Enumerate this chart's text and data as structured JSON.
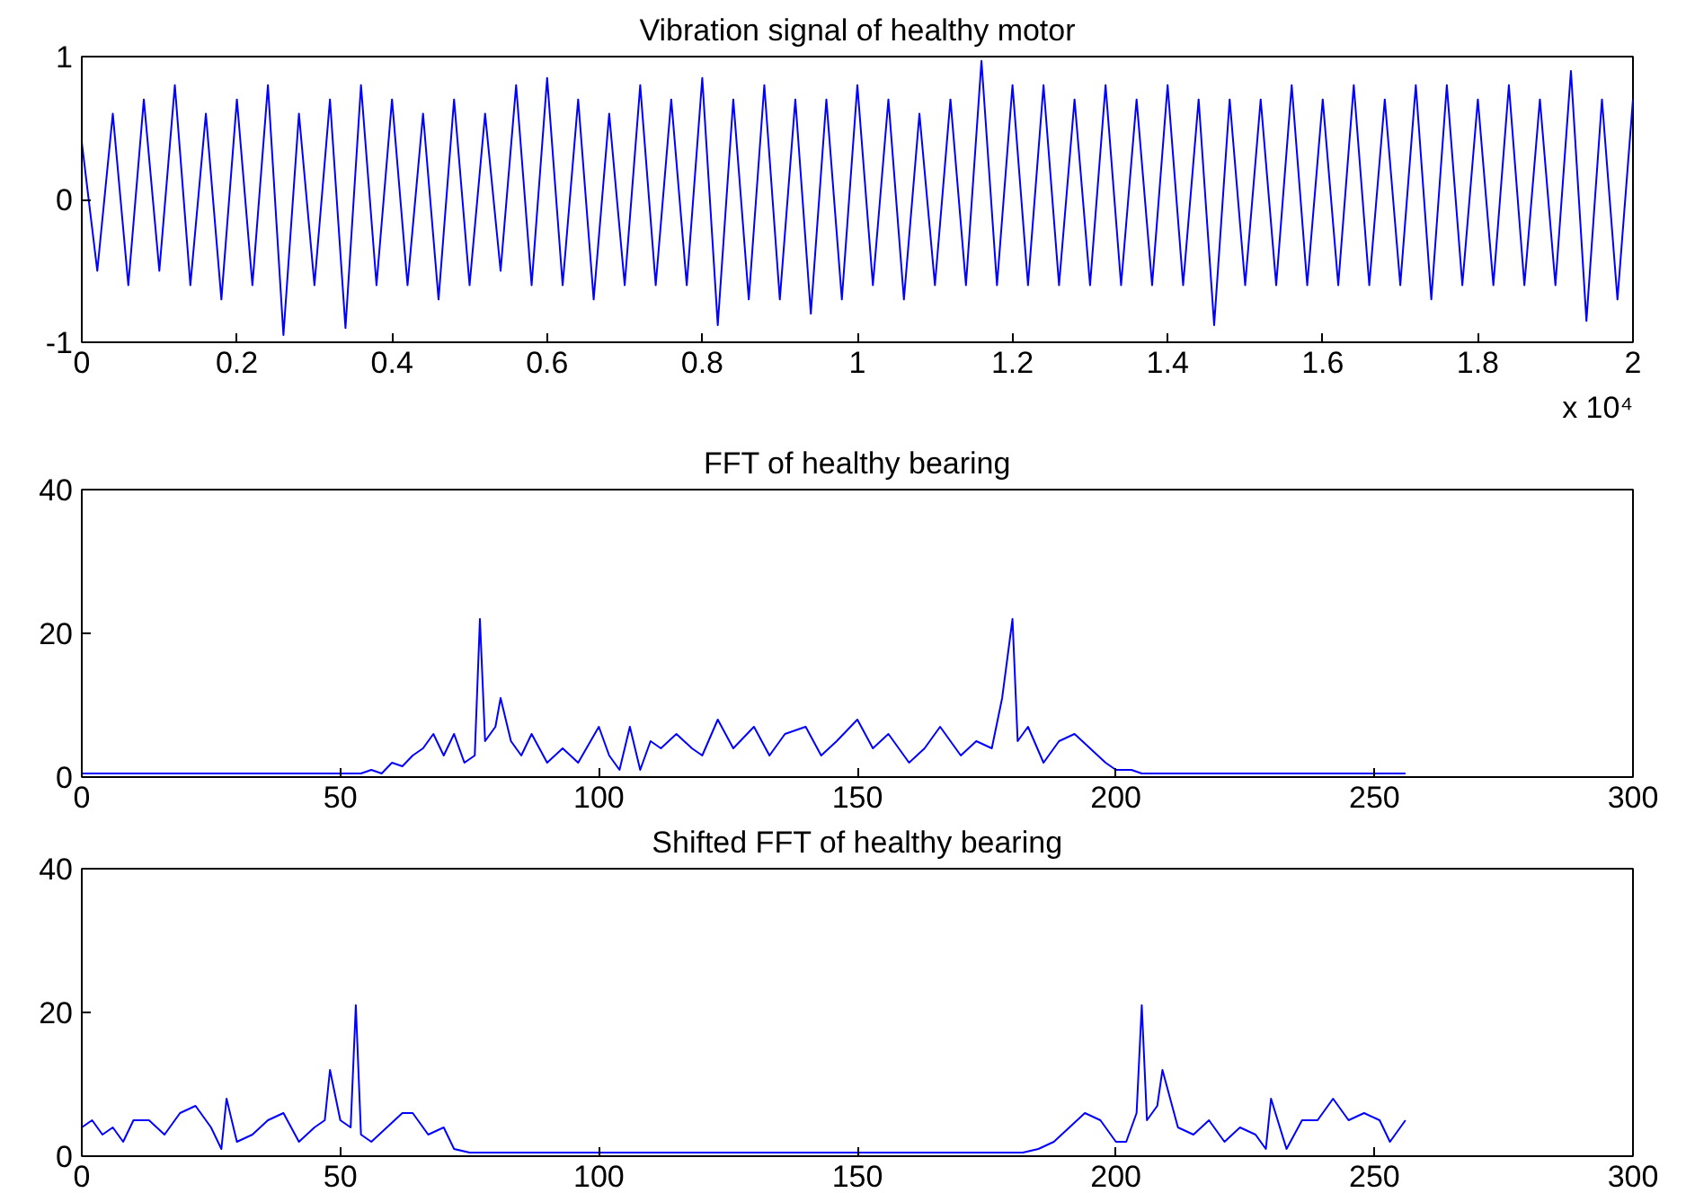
{
  "chart_data": [
    {
      "type": "line",
      "title": "Vibration signal of healthy motor",
      "annotations": [
        "x 10⁴"
      ],
      "x": [
        0,
        0.02,
        0.04,
        0.06,
        0.08,
        0.1,
        0.12,
        0.14,
        0.16,
        0.18,
        0.2,
        0.22,
        0.24,
        0.26,
        0.28,
        0.3,
        0.32,
        0.34,
        0.36,
        0.38,
        0.4,
        0.42,
        0.44,
        0.46,
        0.48,
        0.5,
        0.52,
        0.54,
        0.56,
        0.58,
        0.6,
        0.62,
        0.64,
        0.66,
        0.68,
        0.7,
        0.72,
        0.74,
        0.76,
        0.78,
        0.8,
        0.82,
        0.84,
        0.86,
        0.88,
        0.9,
        0.92,
        0.94,
        0.96,
        0.98,
        1,
        1.02,
        1.04,
        1.06,
        1.08,
        1.1,
        1.12,
        1.14,
        1.16,
        1.18,
        1.2,
        1.22,
        1.24,
        1.26,
        1.28,
        1.3,
        1.32,
        1.34,
        1.36,
        1.38,
        1.4,
        1.42,
        1.44,
        1.46,
        1.48,
        1.5,
        1.52,
        1.54,
        1.56,
        1.58,
        1.6,
        1.62,
        1.64,
        1.66,
        1.68,
        1.7,
        1.72,
        1.74,
        1.76,
        1.78,
        1.8,
        1.82,
        1.84,
        1.86,
        1.88,
        1.9,
        1.92,
        1.94,
        1.96,
        1.98,
        2
      ],
      "series": [
        {
          "color": "#0000ff",
          "values": [
            0.4,
            -0.5,
            0.6,
            -0.6,
            0.7,
            -0.5,
            0.8,
            -0.6,
            0.6,
            -0.7,
            0.7,
            -0.6,
            0.8,
            -0.95,
            0.6,
            -0.6,
            0.7,
            -0.9,
            0.8,
            -0.6,
            0.7,
            -0.6,
            0.6,
            -0.7,
            0.7,
            -0.6,
            0.6,
            -0.5,
            0.8,
            -0.6,
            0.85,
            -0.6,
            0.7,
            -0.7,
            0.6,
            -0.6,
            0.8,
            -0.6,
            0.7,
            -0.6,
            0.85,
            -0.88,
            0.7,
            -0.7,
            0.8,
            -0.7,
            0.7,
            -0.8,
            0.7,
            -0.7,
            0.8,
            -0.6,
            0.7,
            -0.7,
            0.6,
            -0.6,
            0.7,
            -0.6,
            0.97,
            -0.6,
            0.8,
            -0.6,
            0.8,
            -0.6,
            0.7,
            -0.6,
            0.8,
            -0.6,
            0.7,
            -0.6,
            0.8,
            -0.6,
            0.7,
            -0.88,
            0.7,
            -0.6,
            0.7,
            -0.6,
            0.8,
            -0.6,
            0.7,
            -0.6,
            0.8,
            -0.6,
            0.7,
            -0.6,
            0.8,
            -0.7,
            0.8,
            -0.6,
            0.7,
            -0.6,
            0.8,
            -0.6,
            0.7,
            -0.6,
            0.9,
            -0.85,
            0.7,
            -0.7,
            0.7
          ]
        }
      ],
      "xlim": [
        0,
        2
      ],
      "ylim": [
        -1,
        1
      ],
      "xticks": [
        0,
        0.2,
        0.4,
        0.6,
        0.8,
        1,
        1.2,
        1.4,
        1.6,
        1.8,
        2
      ],
      "yticks": [
        -1,
        0,
        1
      ]
    },
    {
      "type": "line",
      "title": "FFT of healthy bearing",
      "x": [
        0,
        54,
        56,
        58,
        60,
        62,
        64,
        66,
        68,
        70,
        72,
        74,
        76,
        77,
        78,
        80,
        81,
        83,
        85,
        87,
        90,
        93,
        96,
        100,
        102,
        104,
        106,
        108,
        110,
        112,
        115,
        118,
        120,
        123,
        126,
        130,
        133,
        136,
        140,
        143,
        146,
        150,
        153,
        156,
        160,
        163,
        166,
        170,
        173,
        176,
        178,
        180,
        181,
        183,
        186,
        189,
        192,
        195,
        198,
        200,
        203,
        205,
        256
      ],
      "series": [
        {
          "color": "#0000ff",
          "values": [
            0.5,
            0.5,
            1,
            0.5,
            2,
            1.5,
            3,
            4,
            6,
            3,
            6,
            2,
            3,
            22,
            5,
            7,
            11,
            5,
            3,
            6,
            2,
            4,
            2,
            7,
            3,
            1,
            7,
            1,
            5,
            4,
            6,
            4,
            3,
            8,
            4,
            7,
            3,
            6,
            7,
            3,
            5,
            8,
            4,
            6,
            2,
            4,
            7,
            3,
            5,
            4,
            11,
            22,
            5,
            7,
            2,
            5,
            6,
            4,
            2,
            1,
            1,
            0.5,
            0.5
          ]
        }
      ],
      "xlim": [
        0,
        300
      ],
      "ylim": [
        0,
        40
      ],
      "xticks": [
        0,
        50,
        100,
        150,
        200,
        250,
        300
      ],
      "yticks": [
        0,
        20,
        40
      ]
    },
    {
      "type": "line",
      "title": "Shifted FFT of healthy bearing",
      "x": [
        0,
        2,
        4,
        6,
        8,
        10,
        13,
        16,
        19,
        22,
        25,
        27,
        28,
        30,
        33,
        36,
        39,
        42,
        45,
        47,
        48,
        50,
        52,
        53,
        54,
        56,
        59,
        62,
        64,
        67,
        70,
        72,
        75,
        182,
        185,
        188,
        191,
        194,
        197,
        200,
        202,
        204,
        205,
        206,
        208,
        209,
        212,
        215,
        218,
        221,
        224,
        227,
        229,
        230,
        233,
        236,
        239,
        242,
        245,
        248,
        251,
        253,
        256
      ],
      "series": [
        {
          "color": "#0000ff",
          "values": [
            4,
            5,
            3,
            4,
            2,
            5,
            5,
            3,
            6,
            7,
            4,
            1,
            8,
            2,
            3,
            5,
            6,
            2,
            4,
            5,
            12,
            5,
            4,
            21,
            3,
            2,
            4,
            6,
            6,
            3,
            4,
            1,
            0.5,
            0.5,
            1,
            2,
            4,
            6,
            5,
            2,
            2,
            6,
            21,
            5,
            7,
            12,
            4,
            3,
            5,
            2,
            4,
            3,
            1,
            8,
            1,
            5,
            5,
            8,
            5,
            6,
            5,
            2,
            5
          ]
        }
      ],
      "xlim": [
        0,
        300
      ],
      "ylim": [
        0,
        40
      ],
      "xticks": [
        0,
        50,
        100,
        150,
        200,
        250,
        300
      ],
      "yticks": [
        0,
        20,
        40
      ]
    }
  ]
}
